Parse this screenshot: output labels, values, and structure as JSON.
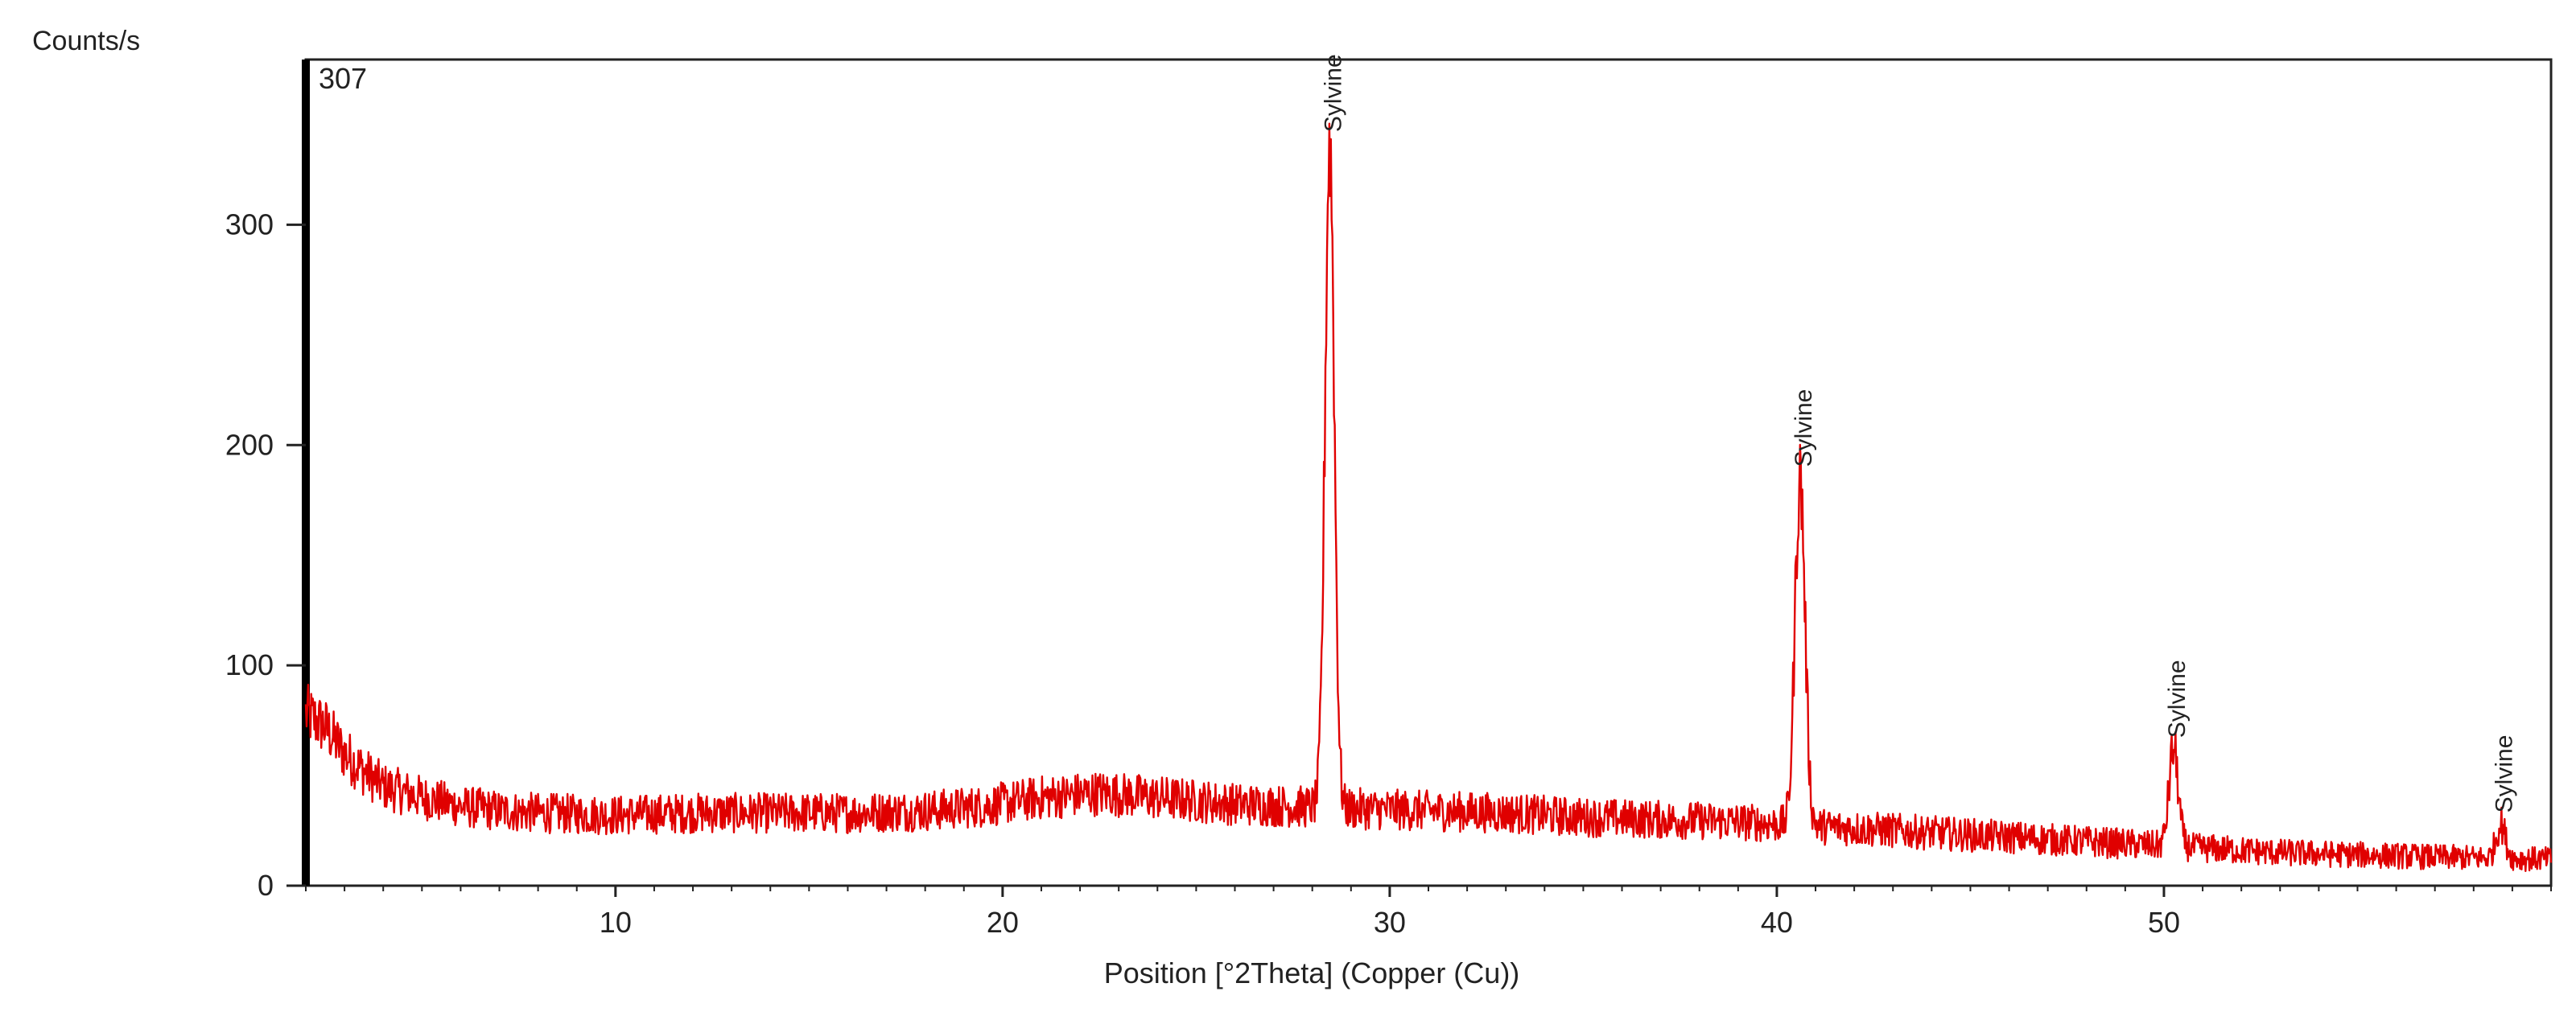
{
  "chart_data": {
    "type": "line",
    "ylabel": "Counts/s",
    "xlabel": "Position [°2Theta] (Copper (Cu))",
    "max_label": "307",
    "xlim": [
      2,
      60
    ],
    "ylim": [
      0,
      375
    ],
    "x_ticks": [
      10,
      20,
      30,
      40,
      50
    ],
    "y_ticks": [
      0,
      100,
      200,
      300
    ],
    "grid": false,
    "series_color": "#e00000",
    "baseline_points": [
      [
        2.0,
        78
      ],
      [
        2.5,
        72
      ],
      [
        3.0,
        60
      ],
      [
        3.5,
        52
      ],
      [
        4.0,
        45
      ],
      [
        5.0,
        40
      ],
      [
        6.0,
        36
      ],
      [
        7.0,
        34
      ],
      [
        8.0,
        33
      ],
      [
        10.0,
        32
      ],
      [
        12.0,
        33
      ],
      [
        14.0,
        33
      ],
      [
        16.0,
        33
      ],
      [
        18.0,
        34
      ],
      [
        19.5,
        36
      ],
      [
        21.0,
        40
      ],
      [
        22.5,
        42
      ],
      [
        24.0,
        40
      ],
      [
        26.0,
        37
      ],
      [
        27.5,
        36
      ],
      [
        29.0,
        35
      ],
      [
        31.0,
        34
      ],
      [
        33.0,
        33
      ],
      [
        35.0,
        31
      ],
      [
        37.0,
        30
      ],
      [
        39.0,
        29
      ],
      [
        41.0,
        27
      ],
      [
        43.0,
        25
      ],
      [
        45.0,
        23
      ],
      [
        47.0,
        21
      ],
      [
        49.0,
        19
      ],
      [
        51.0,
        17
      ],
      [
        53.0,
        15
      ],
      [
        55.0,
        14
      ],
      [
        57.0,
        13
      ],
      [
        60.0,
        12
      ]
    ],
    "peaks": [
      {
        "position": 28.45,
        "intensity": 337,
        "width": 0.12,
        "label": "Sylvine"
      },
      {
        "position": 40.6,
        "intensity": 185,
        "width": 0.13,
        "label": "Sylvine"
      },
      {
        "position": 50.25,
        "intensity": 62,
        "width": 0.12,
        "label": "Sylvine"
      },
      {
        "position": 58.7,
        "intensity": 28,
        "width": 0.12,
        "label": "Sylvine"
      }
    ]
  }
}
